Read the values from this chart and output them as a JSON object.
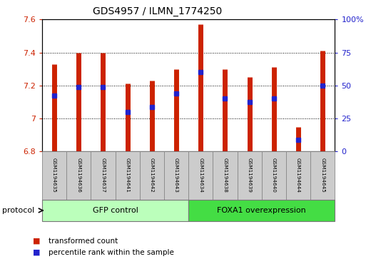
{
  "title": "GDS4957 / ILMN_1774250",
  "samples": [
    "GSM1194635",
    "GSM1194636",
    "GSM1194637",
    "GSM1194641",
    "GSM1194642",
    "GSM1194643",
    "GSM1194634",
    "GSM1194638",
    "GSM1194639",
    "GSM1194640",
    "GSM1194644",
    "GSM1194645"
  ],
  "transformed_count": [
    7.33,
    7.4,
    7.4,
    7.21,
    7.23,
    7.3,
    7.57,
    7.3,
    7.25,
    7.31,
    6.95,
    7.41
  ],
  "percentile_rank": [
    7.14,
    7.19,
    7.19,
    7.04,
    7.07,
    7.15,
    7.28,
    7.12,
    7.1,
    7.12,
    6.87,
    7.2
  ],
  "ymin": 6.8,
  "ymax": 7.6,
  "yticks": [
    6.8,
    7.0,
    7.2,
    7.4,
    7.6
  ],
  "ytick_labels": [
    "6.8",
    "7",
    "7.2",
    "7.4",
    "7.6"
  ],
  "right_yticks": [
    0,
    25,
    50,
    75,
    100
  ],
  "right_ytick_vals": [
    6.8,
    7.0,
    7.2,
    7.4,
    7.6
  ],
  "right_ytick_labels": [
    "0",
    "25",
    "50",
    "75",
    "100%"
  ],
  "bar_color": "#cc2200",
  "percentile_color": "#2222cc",
  "groups": [
    {
      "label": "GFP control",
      "start": 0,
      "end": 6,
      "color": "#bbffbb"
    },
    {
      "label": "FOXA1 overexpression",
      "start": 6,
      "end": 12,
      "color": "#44dd44"
    }
  ],
  "legend_items": [
    {
      "label": "transformed count",
      "color": "#cc2200"
    },
    {
      "label": "percentile rank within the sample",
      "color": "#2222cc"
    }
  ],
  "protocol_label": "protocol",
  "tick_color_left": "#cc2200",
  "tick_color_right": "#2222cc",
  "sample_box_color": "#cccccc",
  "sample_box_edge": "#888888"
}
